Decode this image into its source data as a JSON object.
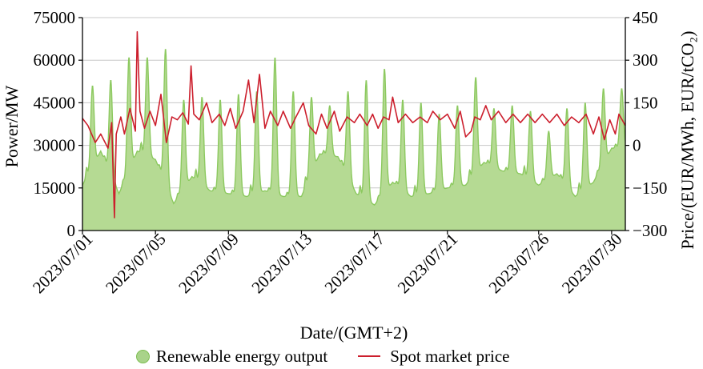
{
  "chart_data": {
    "type": "area",
    "xlabel": "Date/(GMT+2)",
    "ylabel_left": "Power/MW",
    "ylabel_right": "Price/(EUR/MWh, EUR/tCO₂)",
    "x_tick_labels": [
      "2023/07/01",
      "2023/07/05",
      "2023/07/09",
      "2023/07/13",
      "2023/07/17",
      "2023/07/21",
      "2023/07/26",
      "2023/07/30"
    ],
    "x_tick_days": [
      0,
      4,
      8,
      12,
      16,
      20,
      25,
      29
    ],
    "xlim_days": [
      0,
      29.75
    ],
    "yleft": {
      "ylim": [
        0,
        75000
      ],
      "ticks": [
        0,
        15000,
        30000,
        45000,
        60000,
        75000
      ],
      "tick_labels": [
        "0",
        "15000",
        "30000",
        "45000",
        "60000",
        "75000"
      ]
    },
    "yright": {
      "ylim": [
        -300,
        450
      ],
      "ticks": [
        -300,
        -150,
        0,
        150,
        300,
        450
      ],
      "tick_labels": [
        "−300",
        "−150",
        "0",
        "150",
        "300",
        "450"
      ]
    },
    "grid": true,
    "legend_position": "bottom",
    "colors": {
      "renewable_fill": "#b5da93",
      "renewable_line": "#8cc95f",
      "price_line": "#cc1f2d"
    },
    "series": [
      {
        "name": "Renewable energy output",
        "axis": "left",
        "type": "area",
        "daily_peaks": [
          51000,
          53000,
          61000,
          61000,
          64000,
          46000,
          47000,
          46000,
          48000,
          49000,
          61000,
          49000,
          47000,
          44000,
          49000,
          53000,
          57000,
          46000,
          45000,
          41000,
          44000,
          54000,
          43000,
          44000,
          42000,
          35000,
          43000,
          45000,
          50000,
          50000
        ],
        "daily_troughs": [
          16000,
          28000,
          13000,
          28000,
          25000,
          9500,
          19000,
          14000,
          13000,
          12000,
          14000,
          12000,
          12000,
          27000,
          26000,
          13000,
          9000,
          17000,
          12000,
          13000,
          15000,
          16000,
          24000,
          21000,
          20000,
          16000,
          20000,
          12000,
          17000,
          29000
        ]
      },
      {
        "name": "Spot market price",
        "axis": "right",
        "type": "line",
        "points": [
          [
            0,
            95
          ],
          [
            0.3,
            70
          ],
          [
            0.7,
            10
          ],
          [
            1.0,
            40
          ],
          [
            1.4,
            -10
          ],
          [
            1.6,
            80
          ],
          [
            1.75,
            -255
          ],
          [
            1.85,
            40
          ],
          [
            2.1,
            100
          ],
          [
            2.3,
            40
          ],
          [
            2.6,
            130
          ],
          [
            2.9,
            50
          ],
          [
            3.0,
            400
          ],
          [
            3.15,
            120
          ],
          [
            3.4,
            60
          ],
          [
            3.7,
            120
          ],
          [
            4.0,
            70
          ],
          [
            4.3,
            180
          ],
          [
            4.6,
            10
          ],
          [
            4.9,
            100
          ],
          [
            5.2,
            90
          ],
          [
            5.5,
            115
          ],
          [
            5.8,
            75
          ],
          [
            5.95,
            280
          ],
          [
            6.1,
            110
          ],
          [
            6.4,
            90
          ],
          [
            6.8,
            150
          ],
          [
            7.1,
            80
          ],
          [
            7.5,
            110
          ],
          [
            7.8,
            70
          ],
          [
            8.1,
            130
          ],
          [
            8.4,
            60
          ],
          [
            8.8,
            120
          ],
          [
            9.1,
            230
          ],
          [
            9.4,
            80
          ],
          [
            9.7,
            250
          ],
          [
            10.0,
            60
          ],
          [
            10.3,
            120
          ],
          [
            10.7,
            70
          ],
          [
            11.0,
            120
          ],
          [
            11.4,
            60
          ],
          [
            11.7,
            100
          ],
          [
            12.1,
            150
          ],
          [
            12.4,
            70
          ],
          [
            12.8,
            40
          ],
          [
            13.1,
            110
          ],
          [
            13.4,
            60
          ],
          [
            13.8,
            120
          ],
          [
            14.1,
            50
          ],
          [
            14.5,
            100
          ],
          [
            14.9,
            80
          ],
          [
            15.2,
            110
          ],
          [
            15.6,
            70
          ],
          [
            15.9,
            110
          ],
          [
            16.2,
            60
          ],
          [
            16.5,
            100
          ],
          [
            16.8,
            90
          ],
          [
            17.0,
            170
          ],
          [
            17.3,
            80
          ],
          [
            17.7,
            110
          ],
          [
            18.1,
            80
          ],
          [
            18.5,
            100
          ],
          [
            18.9,
            80
          ],
          [
            19.2,
            120
          ],
          [
            19.6,
            90
          ],
          [
            20.0,
            110
          ],
          [
            20.4,
            60
          ],
          [
            20.7,
            120
          ],
          [
            21.0,
            30
          ],
          [
            21.3,
            50
          ],
          [
            21.5,
            100
          ],
          [
            21.8,
            90
          ],
          [
            22.1,
            140
          ],
          [
            22.4,
            90
          ],
          [
            22.8,
            120
          ],
          [
            23.2,
            80
          ],
          [
            23.6,
            110
          ],
          [
            24.0,
            80
          ],
          [
            24.4,
            110
          ],
          [
            24.8,
            80
          ],
          [
            25.2,
            110
          ],
          [
            25.6,
            80
          ],
          [
            26.0,
            110
          ],
          [
            26.4,
            70
          ],
          [
            26.8,
            100
          ],
          [
            27.2,
            80
          ],
          [
            27.6,
            110
          ],
          [
            28.0,
            40
          ],
          [
            28.3,
            100
          ],
          [
            28.6,
            20
          ],
          [
            28.9,
            90
          ],
          [
            29.2,
            40
          ],
          [
            29.4,
            110
          ],
          [
            29.75,
            70
          ]
        ]
      }
    ]
  },
  "legend": {
    "renewable_label": "Renewable energy output",
    "price_label": "Spot market price"
  }
}
